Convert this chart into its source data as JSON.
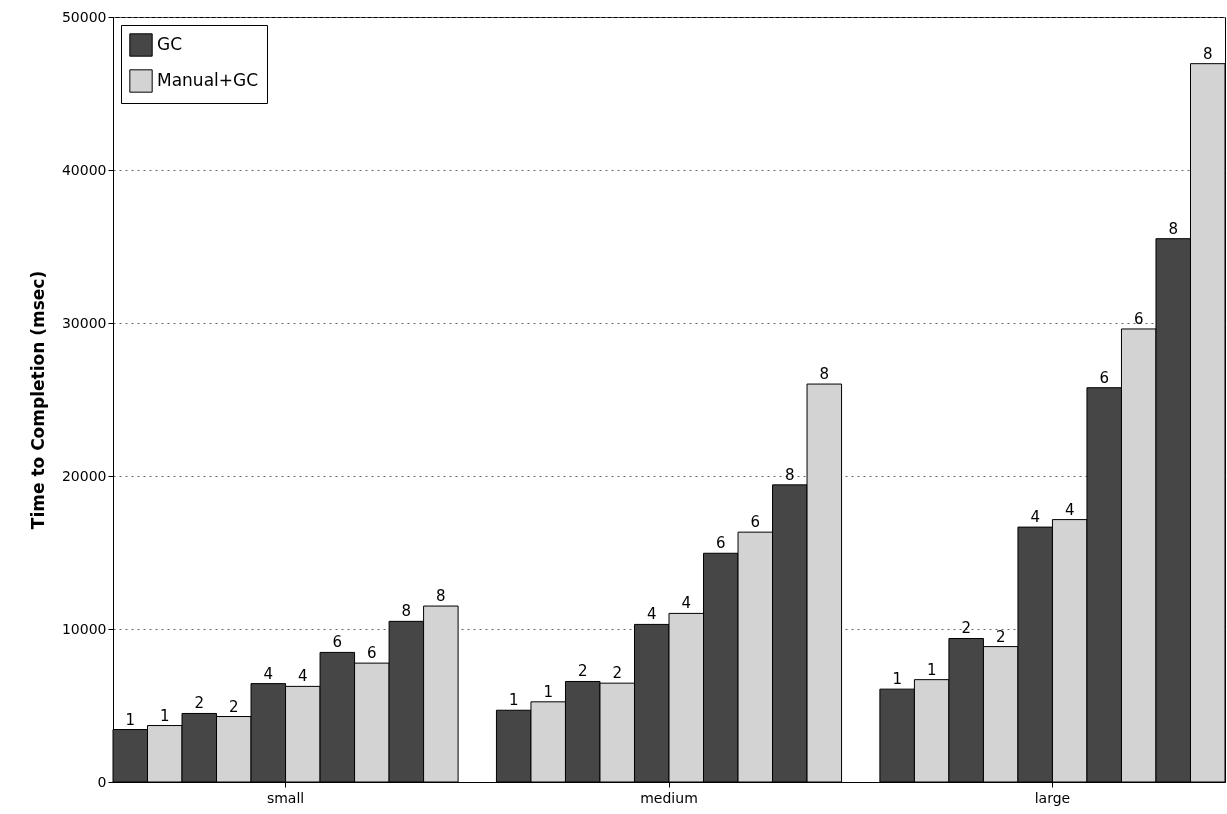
{
  "chart_data": {
    "type": "bar",
    "ylabel": "Time to Completion (msec)",
    "categories": [
      "small",
      "medium",
      "large"
    ],
    "series": [
      {
        "name": "GC",
        "color": "#464646",
        "values": [
          3430,
          4690,
          6070
        ]
      },
      {
        "name": "Manual+GC",
        "color": "#d3d3d3",
        "values": [
          3690,
          5240,
          6690
        ]
      },
      {
        "color": "#464646",
        "values": [
          4480,
          6570,
          9380
        ]
      },
      {
        "color": "#d3d3d3",
        "values": [
          4280,
          6460,
          8850
        ]
      },
      {
        "color": "#464646",
        "values": [
          6430,
          10300,
          16660
        ]
      },
      {
        "color": "#d3d3d3",
        "values": [
          6250,
          11020,
          17150
        ]
      },
      {
        "color": "#464646",
        "values": [
          8470,
          14950,
          25770
        ]
      },
      {
        "color": "#d3d3d3",
        "values": [
          7770,
          16330,
          29610
        ]
      },
      {
        "color": "#464646",
        "values": [
          10500,
          19420,
          35510
        ]
      },
      {
        "color": "#d3d3d3",
        "values": [
          11500,
          26010,
          46950
        ]
      }
    ],
    "annotations": [
      "1",
      "1",
      "2",
      "2",
      "4",
      "4",
      "6",
      "6",
      "8",
      "8",
      "1",
      "1",
      "2",
      "2",
      "4",
      "4",
      "6",
      "6",
      "8",
      "8",
      "1",
      "1",
      "2",
      "2",
      "4",
      "4",
      "6",
      "6",
      "8",
      "8"
    ],
    "ylim": [
      0,
      50000
    ],
    "yticks": [
      0,
      10000,
      20000,
      30000,
      40000,
      50000
    ],
    "grid": "y",
    "legend": "top left"
  }
}
